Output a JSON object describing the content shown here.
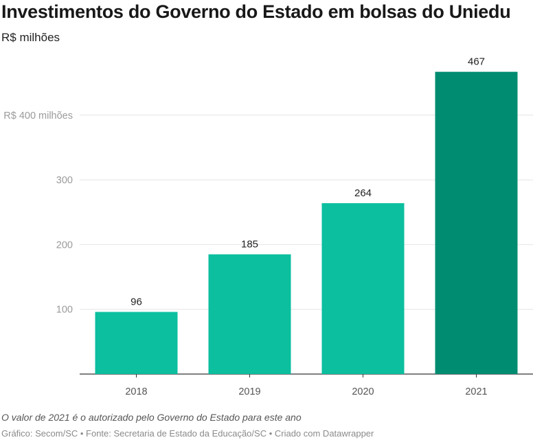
{
  "header": {
    "title": "Investimentos do Governo do Estado em bolsas do Uniedu",
    "subtitle": "R$ milhões"
  },
  "chart_data": {
    "type": "bar",
    "categories": [
      "2018",
      "2019",
      "2020",
      "2021"
    ],
    "values": [
      96,
      185,
      264,
      467
    ],
    "value_labels": [
      "96",
      "185",
      "264",
      "467"
    ],
    "yticks": [
      100,
      200,
      300,
      400
    ],
    "ytick_labels": [
      "100",
      "200",
      "300",
      "R$ 400 milhões"
    ],
    "ylim": [
      0,
      500
    ],
    "grid": true,
    "colors": [
      "#0bbf9f",
      "#0bbf9f",
      "#0bbf9f",
      "#008c71"
    ]
  },
  "notes": {
    "note": "O valor de 2021 é o autorizado pelo Governo do Estado para este ano",
    "footer": "Gráfico: Secom/SC • Fonte: Secretaria de Estado da Educação/SC • Criado com Datawrapper"
  }
}
